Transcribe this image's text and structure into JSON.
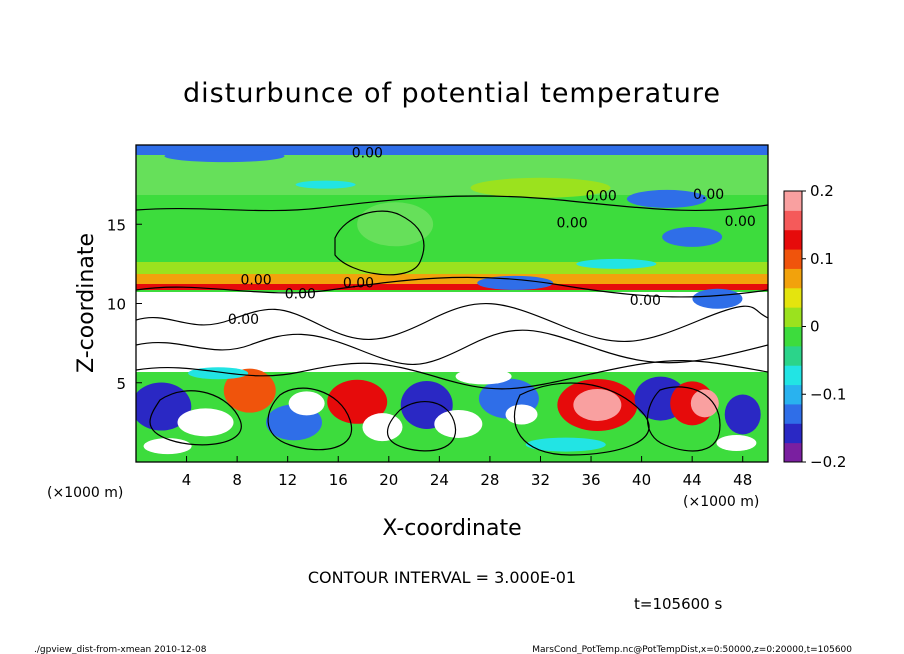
{
  "chart_data": {
    "type": "heatmap",
    "title": "disturbunce of potential temperature",
    "xlabel": "X-coordinate",
    "ylabel": "Z-coordinate",
    "x_unit_label": "(×1000 m)",
    "z_unit_label": "(×1000 m)",
    "xlim": [
      0,
      50
    ],
    "ylim": [
      0,
      20
    ],
    "x_ticks": [
      "4",
      "8",
      "12",
      "16",
      "20",
      "24",
      "28",
      "32",
      "36",
      "40",
      "44",
      "48"
    ],
    "y_ticks": [
      "5",
      "10",
      "15"
    ],
    "colorbar": {
      "range": [
        -0.2,
        0.2
      ],
      "tick_labels": [
        "0.2",
        "0.1",
        "0",
        "−0.1",
        "−0.2"
      ],
      "colors": [
        "#7a1fa0",
        "#2a28c4",
        "#2f6ee8",
        "#29b2ef",
        "#22e4e4",
        "#2bd48a",
        "#3ddc3d",
        "#9be21e",
        "#e4e40e",
        "#f2a20c",
        "#f0540c",
        "#e60b0b",
        "#f55a5a",
        "#f9a0a0"
      ]
    },
    "contour_labels": [
      "0.00",
      "0.00",
      "0.00",
      "0.00",
      "0.00",
      "0.00",
      "0.00",
      "0.00",
      "0.00",
      "0.00"
    ],
    "annotations": {
      "contour_interval": "CONTOUR INTERVAL = 3.000E-01",
      "time": "t=105600 s"
    },
    "grid": false
  },
  "footer": {
    "left": "./gpview_dist-from-xmean   2010-12-08",
    "right": "MarsCond_PotTemp.nc@PotTempDist,x=0:50000,z=0:20000,t=105600"
  }
}
